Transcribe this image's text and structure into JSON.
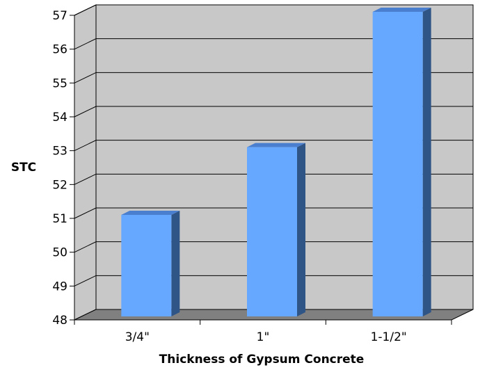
{
  "chart_data": {
    "type": "bar",
    "title": "",
    "xlabel": "Thickness of Gypsum Concrete",
    "ylabel": "STC",
    "categories": [
      "3/4\"",
      "1\"",
      "1-1/2\""
    ],
    "values": [
      51,
      53,
      57
    ],
    "ylim": [
      48,
      57
    ],
    "yticks": [
      "48",
      "49",
      "50",
      "51",
      "52",
      "53",
      "54",
      "55",
      "56",
      "57"
    ],
    "grid": true,
    "legend": "none",
    "three_d": true,
    "colors": {
      "bar_front": "#66a8ff",
      "bar_side": "#2f5586",
      "bar_top": "#4a7fd0",
      "wall": "#c8c8c8",
      "floor": "#808080",
      "grid": "#000000"
    }
  }
}
